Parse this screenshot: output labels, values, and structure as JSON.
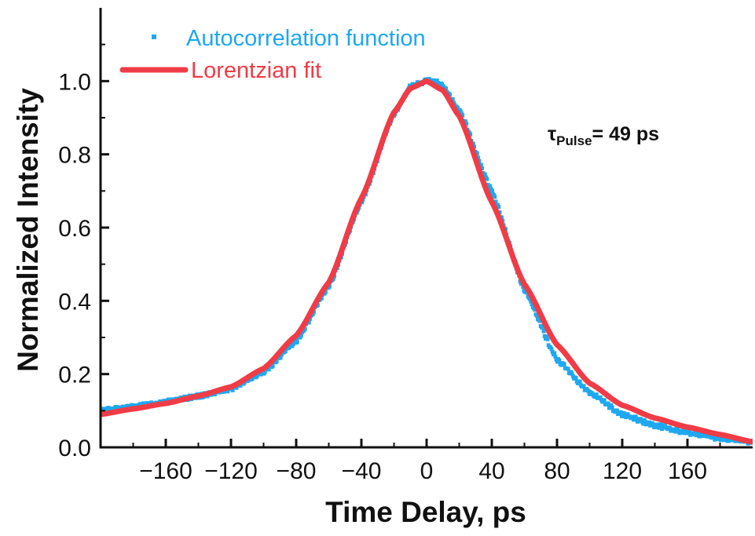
{
  "chart_data": {
    "type": "scatter",
    "title": "",
    "xlabel": "Time Delay, ps",
    "ylabel": "Normalized Intensity",
    "xlim": [
      -200,
      200
    ],
    "ylim": [
      0.0,
      1.2
    ],
    "x_ticks": [
      -160,
      -120,
      -80,
      -40,
      0,
      40,
      80,
      120,
      160
    ],
    "x_tick_labels": [
      "−160",
      "−120",
      "−80",
      "−40",
      "0",
      "40",
      "80",
      "120",
      "160"
    ],
    "y_ticks": [
      0.0,
      0.2,
      0.4,
      0.6,
      0.8,
      1.0
    ],
    "y_tick_labels": [
      "0.0",
      "0.2",
      "0.4",
      "0.6",
      "0.8",
      "1.0"
    ],
    "grid": false,
    "legend_position": "top-left",
    "series": [
      {
        "name": "Autocorrelation function",
        "kind": "scatter",
        "color": "#1ea8f0",
        "x": [
          -200,
          -180,
          -160,
          -140,
          -120,
          -100,
          -80,
          -60,
          -40,
          -20,
          -10,
          0,
          5,
          10,
          20,
          40,
          60,
          80,
          100,
          120,
          140,
          160,
          180,
          200
        ],
        "y": [
          0.1,
          0.11,
          0.125,
          0.14,
          0.16,
          0.205,
          0.29,
          0.44,
          0.67,
          0.91,
          0.985,
          1.0,
          1.0,
          0.985,
          0.92,
          0.7,
          0.43,
          0.24,
          0.15,
          0.09,
          0.06,
          0.04,
          0.025,
          0.015
        ]
      },
      {
        "name": "Lorentzian fit",
        "kind": "line",
        "color": "#f03c46",
        "x": [
          -200,
          -180,
          -160,
          -140,
          -120,
          -100,
          -80,
          -60,
          -40,
          -20,
          -10,
          0,
          10,
          20,
          40,
          60,
          80,
          100,
          120,
          140,
          160,
          180,
          200
        ],
        "y": [
          0.09,
          0.105,
          0.12,
          0.14,
          0.165,
          0.215,
          0.305,
          0.45,
          0.68,
          0.915,
          0.98,
          1.0,
          0.975,
          0.905,
          0.67,
          0.445,
          0.28,
          0.175,
          0.115,
          0.08,
          0.055,
          0.035,
          0.015
        ]
      }
    ],
    "annotation": {
      "symbol": "τ",
      "subscript": "Pulse",
      "text": "= 49 ps"
    }
  }
}
